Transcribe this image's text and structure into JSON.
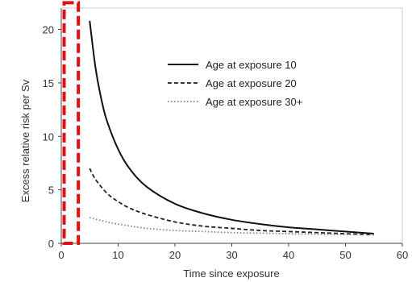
{
  "chart_data": {
    "type": "line",
    "title": "",
    "xlabel": "Time since exposure",
    "ylabel": "Excess relative risk per Sv",
    "xlim": [
      0,
      60
    ],
    "ylim": [
      0,
      22
    ],
    "x_ticks": [
      "0",
      "10",
      "20",
      "30",
      "40",
      "50",
      "60"
    ],
    "y_ticks": [
      "0",
      "5",
      "10",
      "15",
      "20"
    ],
    "grid": false,
    "legend_position": "top-right",
    "series": [
      {
        "name": "Age at exposure 10",
        "style": "solid",
        "color": "#111111",
        "x": [
          5,
          6,
          7,
          8,
          10,
          12,
          15,
          20,
          25,
          30,
          35,
          40,
          45,
          50,
          55
        ],
        "y": [
          20.8,
          16.5,
          13.6,
          11.5,
          8.8,
          7.0,
          5.3,
          3.7,
          2.8,
          2.2,
          1.8,
          1.5,
          1.3,
          1.1,
          0.9
        ]
      },
      {
        "name": "Age at exposure 20",
        "style": "dashed",
        "color": "#222222",
        "x": [
          5,
          6,
          8,
          10,
          12,
          15,
          20,
          25,
          30,
          35,
          40,
          45,
          50,
          55
        ],
        "y": [
          7.0,
          6.0,
          4.7,
          3.9,
          3.3,
          2.7,
          2.0,
          1.6,
          1.4,
          1.2,
          1.1,
          1.0,
          0.9,
          0.8
        ]
      },
      {
        "name": "Age at exposure 30+",
        "style": "dotted",
        "color": "#888888",
        "x": [
          5,
          8,
          10,
          15,
          20,
          25,
          30,
          35,
          40,
          45,
          50,
          55
        ],
        "y": [
          2.4,
          2.0,
          1.8,
          1.4,
          1.2,
          1.1,
          1.0,
          0.95,
          0.9,
          0.85,
          0.82,
          0.8
        ]
      }
    ],
    "annotations": [
      {
        "type": "highlight-rect",
        "color": "#e01010",
        "x_range": [
          0.5,
          3.0
        ],
        "y_range": [
          0,
          22.5
        ]
      }
    ]
  }
}
